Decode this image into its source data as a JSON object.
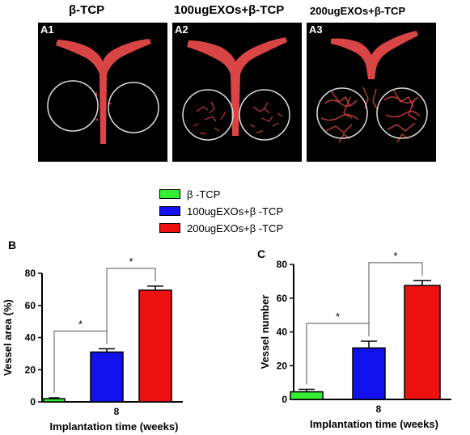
{
  "panels": {
    "titles": [
      "β-TCP",
      "100ugEXOs+β-TCP",
      "200ugEXOs+β-TCP"
    ],
    "labels": [
      "A1",
      "A2",
      "A3"
    ]
  },
  "legend": {
    "items": [
      {
        "label": "β -TCP",
        "color": "#33ee33"
      },
      {
        "label": "100ugEXOs+β -TCP",
        "color": "#1111ee"
      },
      {
        "label": "200ugEXOs+β -TCP",
        "color": "#ee1111"
      }
    ]
  },
  "chart_letters": [
    "B",
    "C"
  ],
  "chart_data": [
    {
      "type": "bar",
      "categories": [
        "8"
      ],
      "series": [
        {
          "name": "β -TCP",
          "values": [
            2
          ],
          "error": [
            0.5
          ],
          "color": "#33ee33"
        },
        {
          "name": "100ugEXOs+β -TCP",
          "values": [
            31
          ],
          "error": [
            2
          ],
          "color": "#1111ee"
        },
        {
          "name": "200ugEXOs+β -TCP",
          "values": [
            69.5
          ],
          "error": [
            2.5
          ],
          "color": "#ee1111"
        }
      ],
      "xlabel": "Implantation time (weeks)",
      "ylabel": "Vessel area (%)",
      "ylim": [
        0,
        80
      ],
      "yticks": [
        0,
        20,
        40,
        60,
        80
      ],
      "significance": [
        "*",
        "*"
      ]
    },
    {
      "type": "bar",
      "categories": [
        "8"
      ],
      "series": [
        {
          "name": "β -TCP",
          "values": [
            4.5
          ],
          "error": [
            1.5
          ],
          "color": "#33ee33"
        },
        {
          "name": "100ugEXOs+β -TCP",
          "values": [
            30.5
          ],
          "error": [
            4
          ],
          "color": "#1111ee"
        },
        {
          "name": "200ugEXOs+β -TCP",
          "values": [
            67.5
          ],
          "error": [
            3
          ],
          "color": "#ee1111"
        }
      ],
      "xlabel": "Implantation time (weeks)",
      "ylabel": "Vessel number",
      "ylim": [
        0,
        80
      ],
      "yticks": [
        0,
        20,
        40,
        60,
        80
      ],
      "significance": [
        "*",
        "*"
      ]
    }
  ]
}
